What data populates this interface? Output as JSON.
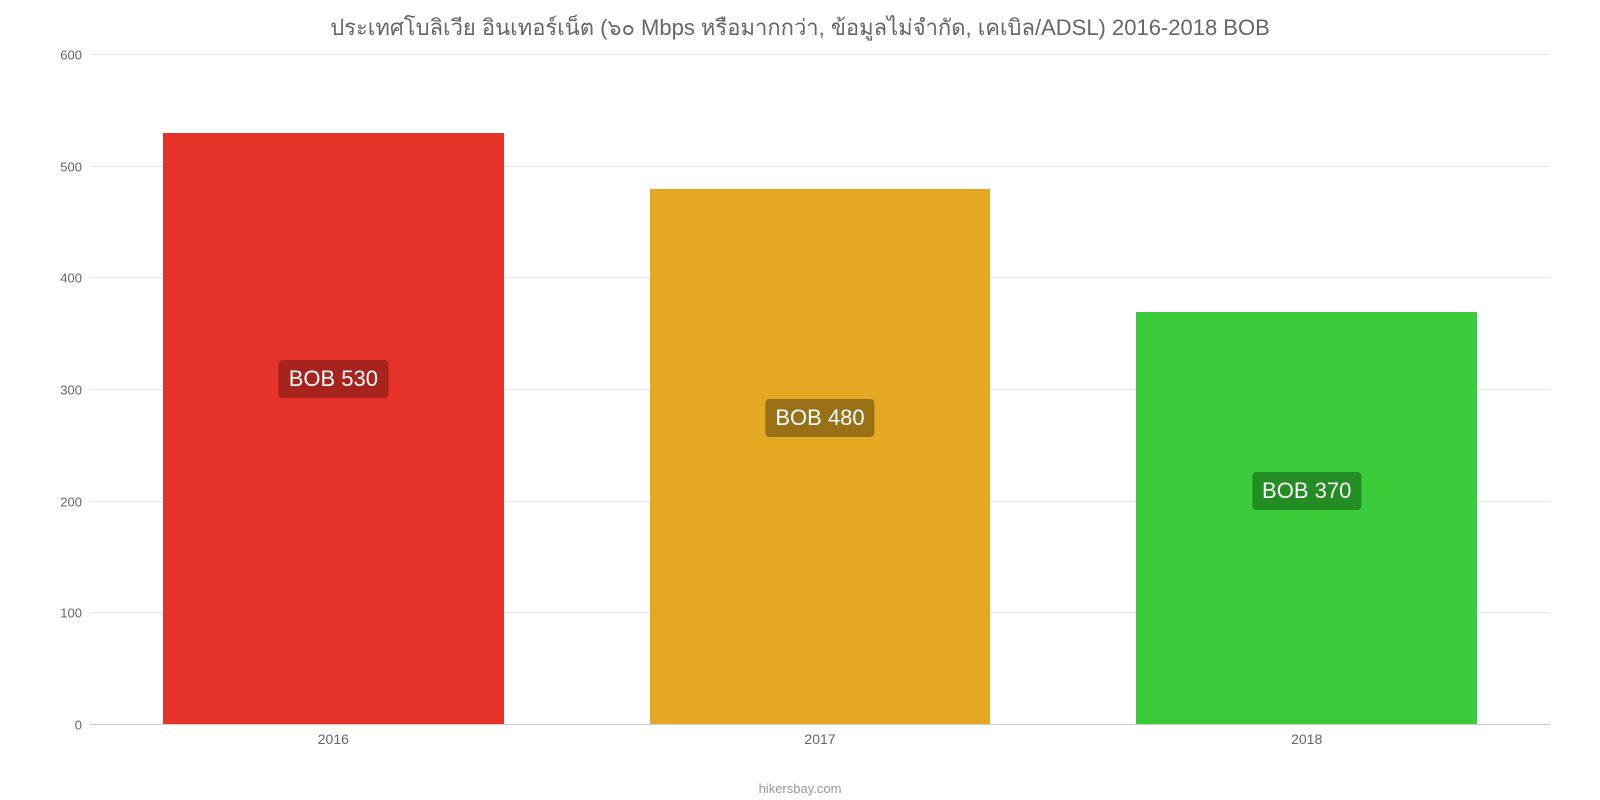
{
  "chart": {
    "type": "bar",
    "title": "ประเทศโบลิเวีย อินเทอร์เน็ต (๖๐ Mbps หรือมากกว่า, ข้อมูลไม่จำกัด, เคเบิล/ADSL) 2016-2018 BOB",
    "title_color": "#666666",
    "title_fontsize": 22,
    "categories": [
      "2016",
      "2017",
      "2018"
    ],
    "values": [
      530,
      480,
      370
    ],
    "bar_colors": [
      "#e6332a",
      "#e5a822",
      "#3bcc3b"
    ],
    "data_labels": [
      "BOB 530",
      "BOB 480",
      "BOB 370"
    ],
    "label_bg_colors": [
      "#a6241d",
      "#9a7016",
      "#238c23"
    ],
    "label_text_color": "#ffffff",
    "label_fontsize": 22,
    "label_y_positions": [
      310,
      275,
      210
    ],
    "ylim": [
      0,
      600
    ],
    "ytick_step": 100,
    "yticks": [
      0,
      100,
      200,
      300,
      400,
      500,
      600
    ],
    "background_color": "#ffffff",
    "grid_color": "#e6e6e6",
    "axis_label_color": "#666666",
    "axis_fontsize": 14,
    "bar_width": 0.7,
    "attribution": "hikersbay.com",
    "attribution_color": "#999999"
  }
}
